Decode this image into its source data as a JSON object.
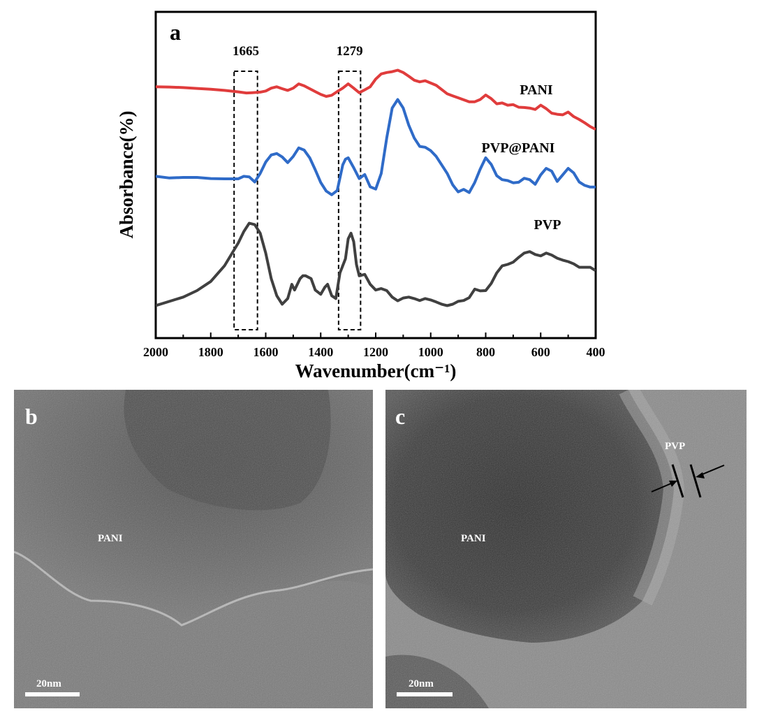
{
  "panels": {
    "a": {
      "letter": "a"
    },
    "b": {
      "letter": "b",
      "label": "PANI",
      "scale_bar": "20nm"
    },
    "c": {
      "letter": "c",
      "label_core": "PANI",
      "label_shell": "PVP",
      "scale_bar": "20nm"
    }
  },
  "chart_data": {
    "type": "line",
    "xlabel": "Wavenumber(cm⁻¹)",
    "ylabel": "Absorbance(%)",
    "xlim": [
      2000,
      400
    ],
    "x_reversed": true,
    "ticks": [
      2000,
      1800,
      1600,
      1400,
      1200,
      1000,
      800,
      600,
      400
    ],
    "tick_labels": [
      "2000",
      "1800",
      "1600",
      "1400",
      "1200",
      "1000",
      "800",
      "600",
      "400"
    ],
    "y_ticks_shown": false,
    "grid": false,
    "annotations": [
      {
        "label": "1665",
        "x_range": [
          1715,
          1630
        ]
      },
      {
        "label": "1279",
        "x_range": [
          1335,
          1255
        ]
      }
    ],
    "series": [
      {
        "name": "PANI",
        "color": "#e03c3c",
        "x": [
          2000,
          1950,
          1900,
          1850,
          1800,
          1750,
          1700,
          1670,
          1650,
          1620,
          1600,
          1580,
          1560,
          1540,
          1520,
          1500,
          1480,
          1460,
          1440,
          1420,
          1400,
          1380,
          1360,
          1340,
          1320,
          1300,
          1280,
          1260,
          1240,
          1220,
          1200,
          1180,
          1160,
          1140,
          1120,
          1100,
          1080,
          1060,
          1040,
          1020,
          1000,
          980,
          960,
          940,
          920,
          900,
          880,
          860,
          840,
          820,
          800,
          780,
          760,
          740,
          720,
          700,
          680,
          660,
          640,
          620,
          600,
          580,
          560,
          540,
          520,
          500,
          480,
          460,
          440,
          420,
          400
        ],
        "y": [
          0.835,
          0.834,
          0.832,
          0.829,
          0.826,
          0.822,
          0.817,
          0.813,
          0.814,
          0.816,
          0.82,
          0.83,
          0.835,
          0.828,
          0.822,
          0.83,
          0.845,
          0.838,
          0.828,
          0.818,
          0.808,
          0.801,
          0.805,
          0.818,
          0.83,
          0.845,
          0.83,
          0.814,
          0.824,
          0.835,
          0.862,
          0.88,
          0.885,
          0.888,
          0.893,
          0.885,
          0.872,
          0.858,
          0.852,
          0.856,
          0.848,
          0.84,
          0.825,
          0.81,
          0.803,
          0.796,
          0.789,
          0.782,
          0.782,
          0.79,
          0.806,
          0.793,
          0.775,
          0.778,
          0.77,
          0.772,
          0.763,
          0.762,
          0.76,
          0.755,
          0.77,
          0.758,
          0.742,
          0.738,
          0.736,
          0.746,
          0.73,
          0.72,
          0.708,
          0.695,
          0.685
        ]
      },
      {
        "name": "PVP@PANI",
        "color": "#2f6bc8",
        "x": [
          2000,
          1950,
          1900,
          1850,
          1800,
          1750,
          1700,
          1680,
          1660,
          1640,
          1620,
          1600,
          1580,
          1560,
          1540,
          1520,
          1500,
          1480,
          1460,
          1440,
          1420,
          1400,
          1380,
          1360,
          1340,
          1320,
          1310,
          1300,
          1280,
          1260,
          1240,
          1220,
          1200,
          1180,
          1160,
          1140,
          1120,
          1100,
          1080,
          1060,
          1040,
          1020,
          1000,
          980,
          960,
          940,
          920,
          900,
          880,
          860,
          840,
          820,
          800,
          780,
          760,
          740,
          720,
          700,
          680,
          660,
          640,
          620,
          600,
          580,
          560,
          540,
          520,
          500,
          480,
          460,
          440,
          420,
          400
        ],
        "y": [
          0.52,
          0.514,
          0.516,
          0.516,
          0.512,
          0.511,
          0.511,
          0.52,
          0.518,
          0.5,
          0.53,
          0.57,
          0.595,
          0.6,
          0.588,
          0.568,
          0.59,
          0.62,
          0.612,
          0.585,
          0.543,
          0.498,
          0.468,
          0.455,
          0.47,
          0.56,
          0.58,
          0.585,
          0.55,
          0.512,
          0.526,
          0.483,
          0.475,
          0.53,
          0.655,
          0.76,
          0.79,
          0.76,
          0.7,
          0.655,
          0.625,
          0.622,
          0.61,
          0.59,
          0.56,
          0.53,
          0.49,
          0.465,
          0.474,
          0.463,
          0.498,
          0.545,
          0.585,
          0.562,
          0.522,
          0.508,
          0.505,
          0.497,
          0.499,
          0.513,
          0.508,
          0.492,
          0.525,
          0.548,
          0.538,
          0.502,
          0.525,
          0.548,
          0.532,
          0.5,
          0.488,
          0.482,
          0.482
        ]
      },
      {
        "name": "PVP",
        "color": "#404040",
        "x": [
          2000,
          1950,
          1900,
          1850,
          1800,
          1750,
          1700,
          1680,
          1660,
          1640,
          1620,
          1600,
          1580,
          1560,
          1540,
          1520,
          1505,
          1495,
          1485,
          1475,
          1465,
          1455,
          1445,
          1435,
          1420,
          1400,
          1385,
          1375,
          1360,
          1345,
          1330,
          1310,
          1300,
          1290,
          1280,
          1270,
          1260,
          1240,
          1220,
          1200,
          1180,
          1160,
          1140,
          1120,
          1100,
          1080,
          1060,
          1040,
          1020,
          1000,
          980,
          960,
          940,
          920,
          900,
          880,
          860,
          840,
          820,
          800,
          780,
          760,
          740,
          720,
          700,
          680,
          660,
          640,
          620,
          600,
          580,
          560,
          540,
          520,
          500,
          480,
          460,
          440,
          420,
          400
        ],
        "y": [
          0.065,
          0.08,
          0.095,
          0.118,
          0.15,
          0.205,
          0.285,
          0.325,
          0.355,
          0.35,
          0.32,
          0.25,
          0.16,
          0.1,
          0.07,
          0.09,
          0.14,
          0.12,
          0.14,
          0.16,
          0.17,
          0.17,
          0.165,
          0.16,
          0.12,
          0.105,
          0.13,
          0.14,
          0.1,
          0.09,
          0.18,
          0.23,
          0.3,
          0.32,
          0.29,
          0.21,
          0.17,
          0.175,
          0.14,
          0.12,
          0.125,
          0.118,
          0.095,
          0.082,
          0.092,
          0.095,
          0.09,
          0.083,
          0.09,
          0.085,
          0.078,
          0.07,
          0.065,
          0.07,
          0.08,
          0.083,
          0.093,
          0.123,
          0.117,
          0.118,
          0.143,
          0.18,
          0.205,
          0.21,
          0.218,
          0.235,
          0.25,
          0.255,
          0.245,
          0.24,
          0.25,
          0.243,
          0.232,
          0.225,
          0.22,
          0.212,
          0.2,
          0.2,
          0.2,
          0.188
        ]
      }
    ],
    "series_label_positions": [
      {
        "series": "PANI",
        "anchor_x": 620,
        "anchor_y": 0.86
      },
      {
        "series": "PVP@PANI",
        "anchor_x": 1260,
        "anchor_y": 0.0
      },
      {
        "series": "PVP",
        "anchor_x": 580,
        "anchor_y": 0.345
      }
    ]
  },
  "tem_panels": [
    {
      "id": "b",
      "tone": "PANI core; lighter carbon support film along lower edge"
    },
    {
      "id": "c",
      "tone": "dark PANI core surrounded by lighter PVP shell with arrows"
    }
  ]
}
